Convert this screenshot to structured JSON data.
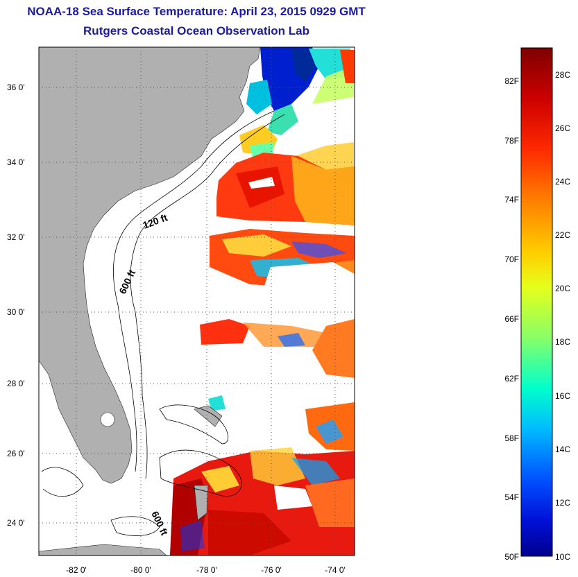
{
  "title": "NOAA-18 Sea Surface Temperature:  April 23, 2015 0929 GMT",
  "subtitle": "Rutgers Coastal Ocean Observation Lab",
  "lat_ticks": [
    "36 0'",
    "34 0'",
    "32 0'",
    "30 0'",
    "28 0'",
    "26 0'",
    "24 0'"
  ],
  "lon_ticks": [
    "-82 0'",
    "-80 0'",
    "-78 0'",
    "-76 0'",
    "-74 0'"
  ],
  "isobaths": [
    "120 ft",
    "600 ft",
    "600 ft"
  ],
  "colorbar": {
    "fahrenheit": [
      "82F",
      "78F",
      "74F",
      "70F",
      "66F",
      "62F",
      "58F",
      "54F",
      "50F"
    ],
    "celsius": [
      "28C",
      "26C",
      "24C",
      "22C",
      "20C",
      "18C",
      "16C",
      "14C",
      "12C",
      "10C"
    ],
    "colors": [
      "#7f0000",
      "#cc0000",
      "#ff3300",
      "#ff8800",
      "#ffcc00",
      "#ccff33",
      "#66ff99",
      "#00e5ff",
      "#0099ff",
      "#0033ff",
      "#00008c"
    ]
  },
  "colors": {
    "land": "#b0b0b0",
    "title": "#1a1aa6"
  }
}
